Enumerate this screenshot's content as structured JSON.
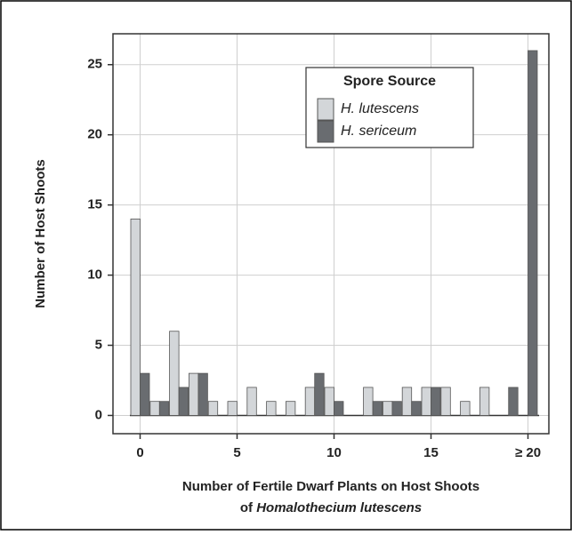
{
  "chart_data": {
    "type": "bar",
    "ylabel": "Number of Host Shoots",
    "xlabel": "Number of Fertile Dwarf Plants on Host Shoots",
    "xlabel_line2": [
      "of",
      "Homalothecium lutescens"
    ],
    "legend_title": "Spore Source",
    "categories": [
      "0",
      null,
      null,
      null,
      null,
      "5",
      null,
      null,
      null,
      null,
      "10",
      null,
      null,
      null,
      null,
      "15",
      null,
      null,
      null,
      null,
      "≥ 20"
    ],
    "series": [
      {
        "name": "H. lutescens",
        "color": "#d3d6d9",
        "values": [
          14,
          1,
          6,
          3,
          1,
          1,
          2,
          1,
          1,
          2,
          2,
          0,
          2,
          1,
          2,
          2,
          2,
          1,
          2,
          0,
          0
        ]
      },
      {
        "name": "H. sericeum",
        "color": "#696c70",
        "values": [
          3,
          1,
          2,
          3,
          0,
          0,
          0,
          0,
          0,
          3,
          1,
          0,
          1,
          1,
          1,
          2,
          0,
          0,
          0,
          2,
          26
        ]
      }
    ],
    "ylim": [
      -1.3,
      27.2
    ],
    "yticks": [
      0,
      5,
      10,
      15,
      20,
      25
    ],
    "grid": true
  }
}
